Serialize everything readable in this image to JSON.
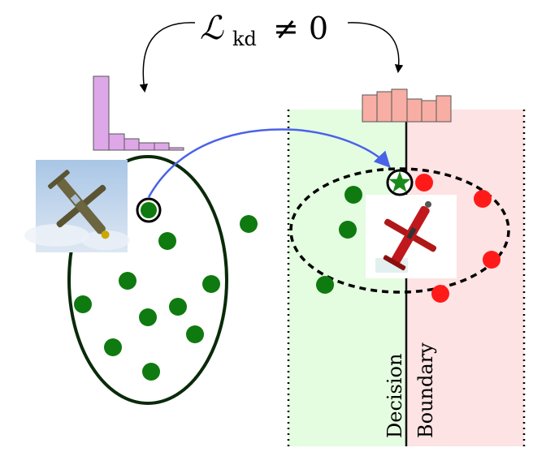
{
  "equation": {
    "main": "ℒ",
    "subscript": "kd",
    "rest": "≠ 0"
  },
  "boundary_label": {
    "line1": "Decision",
    "line2": "Boundary"
  },
  "colors": {
    "green_point": "#0f7a0f",
    "red_point": "#ff1a1a",
    "green_region": "#e4fce0",
    "red_region": "#fde3e3",
    "left_histogram": "#dea8e8",
    "right_histogram": "#f8aea4",
    "arrow_blue": "#4a62e8",
    "cluster_outline": "#0a2a0a"
  },
  "left_histogram": {
    "values": [
      1.0,
      0.2,
      0.16,
      0.1,
      0.09,
      0.11,
      0.04
    ]
  },
  "right_histogram": {
    "values": [
      0.72,
      0.78,
      0.85,
      0.6,
      0.55,
      0.7
    ]
  },
  "icons": {
    "source_image": "airplane-photo",
    "perturbed_image": "perturbed-airplane-photo",
    "star": "star-icon"
  }
}
